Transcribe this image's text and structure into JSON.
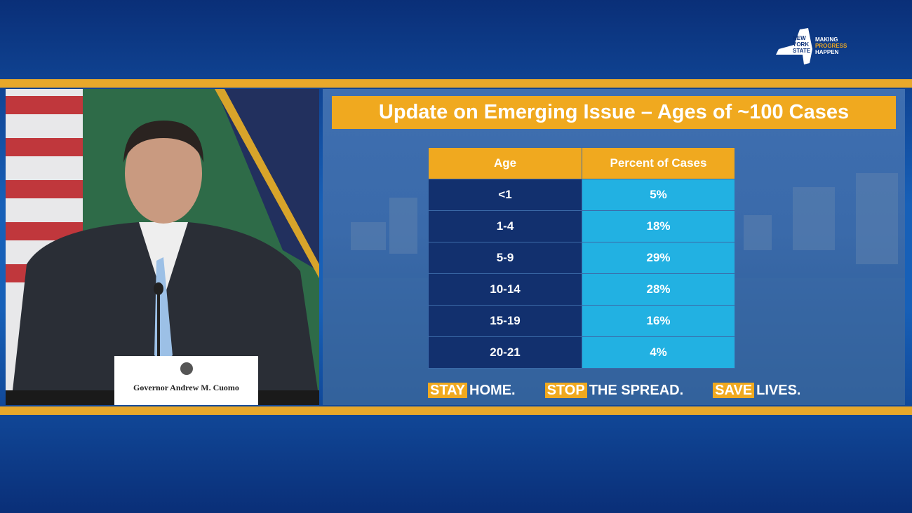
{
  "logo": {
    "state": [
      "NEW",
      "YORK",
      "STATE"
    ],
    "tagline": [
      "MAKING",
      "PROGRESS",
      "HAPPEN"
    ]
  },
  "nameplate": "Governor Andrew M. Cuomo",
  "slide": {
    "title": "Update on Emerging Issue – Ages of ~100 Cases",
    "table": {
      "header": [
        "Age",
        "Percent of Cases"
      ],
      "rows": [
        [
          "<1",
          "5%"
        ],
        [
          "1-4",
          "18%"
        ],
        [
          "5-9",
          "29%"
        ],
        [
          "10-14",
          "28%"
        ],
        [
          "15-19",
          "16%"
        ],
        [
          "20-21",
          "4%"
        ]
      ]
    },
    "footer": [
      [
        "STAY",
        "HOME."
      ],
      [
        "STOP",
        "THE SPREAD."
      ],
      [
        "SAVE",
        "LIVES."
      ]
    ]
  }
}
